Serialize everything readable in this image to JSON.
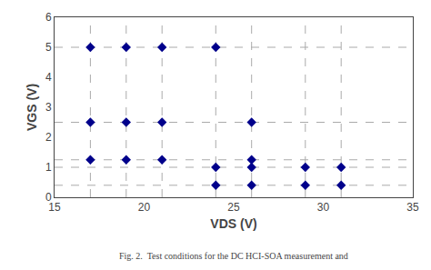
{
  "chart_data": {
    "type": "scatter",
    "x": [
      17,
      17,
      17,
      19,
      19,
      19,
      21,
      21,
      21,
      24,
      24,
      24,
      26,
      26,
      26,
      26,
      29,
      29,
      31,
      31
    ],
    "values": [
      1.25,
      2.5,
      5.0,
      1.25,
      2.5,
      5.0,
      1.25,
      2.5,
      5.0,
      0.4,
      1.0,
      5.0,
      0.4,
      1.0,
      1.25,
      2.5,
      0.4,
      1.0,
      0.4,
      1.0
    ],
    "color": "#00008B",
    "marker": "diamond",
    "xlim": [
      15,
      35
    ],
    "ylim": [
      0,
      6
    ],
    "xticks": [
      15,
      20,
      25,
      30,
      35
    ],
    "yticks": [
      0,
      1,
      2,
      3,
      4,
      5,
      6
    ],
    "xlabel": "VDS (V)",
    "ylabel": "VGS (V)",
    "annotations": [
      "Fig. 2.  Test conditions for the DC HCI-SOA measurement and"
    ],
    "grid": false,
    "vlines": {
      "values": [
        17,
        19,
        21,
        24,
        26,
        29,
        31
      ],
      "color": "#aaaaaa",
      "line_style": "dash"
    },
    "hlines": {
      "values": [
        0.4,
        1.0,
        1.25,
        2.5,
        5.0
      ],
      "color": "#aaaaaa",
      "line_style": "dash"
    }
  }
}
